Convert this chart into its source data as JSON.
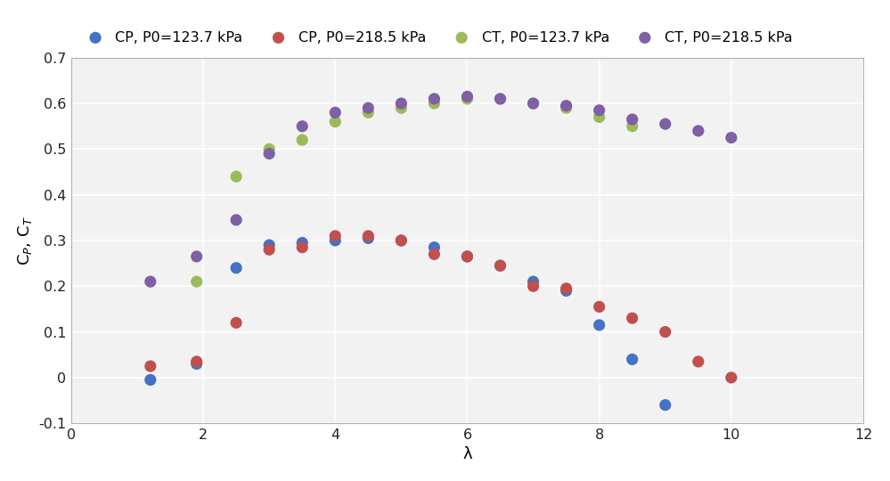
{
  "CP_P0_123": {
    "lambda": [
      1.2,
      1.9,
      2.5,
      3.0,
      3.5,
      4.0,
      4.5,
      5.0,
      5.5,
      6.0,
      6.5,
      7.0,
      7.5,
      8.0,
      8.5,
      9.0
    ],
    "values": [
      -0.005,
      0.03,
      0.24,
      0.29,
      0.295,
      0.3,
      0.305,
      0.3,
      0.285,
      0.265,
      0.245,
      0.21,
      0.19,
      0.115,
      0.04,
      -0.06
    ],
    "color": "#4472C4",
    "label": "CP, P0=123.7 kPa",
    "size": 90
  },
  "CP_P0_218": {
    "lambda": [
      1.2,
      1.9,
      2.5,
      3.0,
      3.5,
      4.0,
      4.5,
      5.0,
      5.5,
      6.0,
      6.5,
      7.0,
      7.5,
      8.0,
      8.5,
      9.0,
      9.5,
      10.0
    ],
    "values": [
      0.025,
      0.035,
      0.12,
      0.28,
      0.285,
      0.31,
      0.31,
      0.3,
      0.27,
      0.265,
      0.245,
      0.2,
      0.195,
      0.155,
      0.13,
      0.1,
      0.035,
      0.0
    ],
    "color": "#C0504D",
    "label": "CP, P0=218.5 kPa",
    "size": 90
  },
  "CT_P0_123": {
    "lambda": [
      1.9,
      2.5,
      3.0,
      3.5,
      4.0,
      4.5,
      5.0,
      5.5,
      6.0,
      6.5,
      7.0,
      7.5,
      8.0,
      8.5
    ],
    "values": [
      0.21,
      0.44,
      0.5,
      0.52,
      0.56,
      0.58,
      0.59,
      0.6,
      0.61,
      0.61,
      0.6,
      0.59,
      0.57,
      0.55
    ],
    "color": "#9BBB59",
    "label": "CT, P0=123.7 kPa",
    "size": 90
  },
  "CT_P0_218": {
    "lambda": [
      1.2,
      1.9,
      2.5,
      3.0,
      3.5,
      4.0,
      4.5,
      5.0,
      5.5,
      6.0,
      6.5,
      7.0,
      7.5,
      8.0,
      8.5,
      9.0,
      9.5,
      10.0
    ],
    "values": [
      0.21,
      0.265,
      0.345,
      0.49,
      0.55,
      0.58,
      0.59,
      0.6,
      0.61,
      0.615,
      0.61,
      0.6,
      0.595,
      0.585,
      0.565,
      0.555,
      0.54,
      0.525
    ],
    "color": "#7F5FA6",
    "label": "CT, P0=218.5 kPa",
    "size": 90
  },
  "xlim": [
    0,
    12
  ],
  "ylim": [
    -0.1,
    0.7
  ],
  "xticks": [
    0,
    2,
    4,
    6,
    8,
    10,
    12
  ],
  "yticks": [
    -0.1,
    0.0,
    0.1,
    0.2,
    0.3,
    0.4,
    0.5,
    0.6,
    0.7
  ],
  "xlabel": "λ",
  "ylabel": "C$_{P}$, C$_{T}$",
  "plot_bg": "#f2f2f2",
  "fig_bg": "#ffffff",
  "grid_color": "#ffffff",
  "grid_lw": 1.2,
  "series_order": [
    "CP_P0_123",
    "CP_P0_218",
    "CT_P0_123",
    "CT_P0_218"
  ],
  "figsize": [
    9.99,
    5.4
  ],
  "dpi": 100,
  "legend_fontsize": 11.5,
  "axis_fontsize": 13,
  "tick_fontsize": 11.5
}
